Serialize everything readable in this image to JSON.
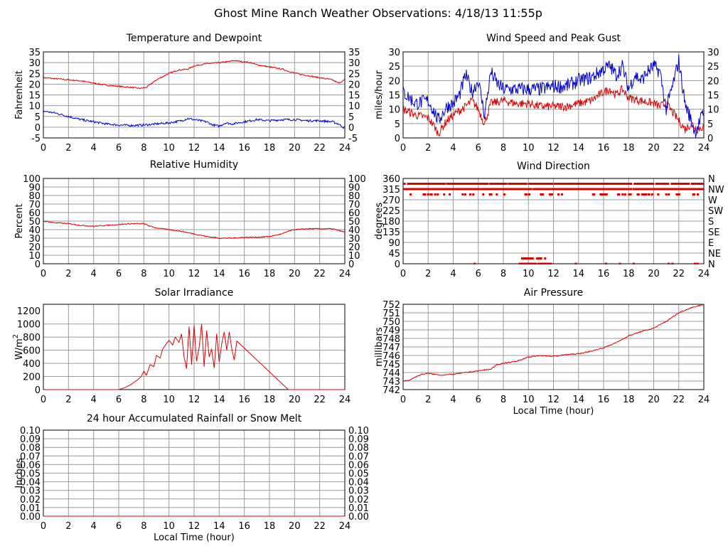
{
  "title": "Ghost Mine Ranch Weather Observations: 4/18/13 11:55p",
  "colors": {
    "red": "#dd0000",
    "blue": "#0000cc",
    "grid": "#9a9a9a"
  },
  "chart_data": [
    {
      "id": "temp",
      "type": "line",
      "title": "Temperature and Dewpoint",
      "xlabel": "",
      "ylabel": "Fahrenheit",
      "xlim": [
        0,
        24
      ],
      "ylim": [
        -5,
        35
      ],
      "xticks": [
        0,
        2,
        4,
        6,
        8,
        10,
        12,
        14,
        16,
        18,
        20,
        22,
        24
      ],
      "yticks": [
        -5,
        0,
        5,
        10,
        15,
        20,
        25,
        30,
        35
      ],
      "yticks_right": [
        -5,
        0,
        5,
        10,
        15,
        20,
        25,
        30,
        35
      ],
      "series": [
        {
          "color": "red",
          "noise": 0.3,
          "x": [
            0,
            1,
            2,
            3,
            4,
            5,
            6,
            7,
            7.7,
            8.2,
            9,
            10,
            10.7,
            11.5,
            12,
            13,
            14,
            14.8,
            15.2,
            15.8,
            16.5,
            17,
            18,
            19,
            19.8,
            20.5,
            21,
            22,
            23,
            23.5,
            24
          ],
          "y": [
            23,
            22.5,
            22,
            21.5,
            20.5,
            19.5,
            19,
            18.5,
            18,
            18.5,
            22,
            25,
            26.5,
            27,
            28.5,
            29.5,
            30,
            30.5,
            31,
            30.5,
            30,
            29,
            28,
            27,
            25.5,
            24.5,
            24,
            23,
            22,
            20.5,
            22
          ]
        },
        {
          "color": "blue",
          "noise": 0.5,
          "x": [
            0,
            1,
            2,
            3,
            4,
            5,
            6,
            7,
            8,
            9,
            10,
            11,
            11.5,
            12,
            13,
            13.5,
            14,
            14.5,
            15,
            16,
            17,
            18,
            19,
            20,
            21,
            22,
            23,
            23.5,
            24
          ],
          "y": [
            7.5,
            6.5,
            5,
            3.5,
            2.5,
            1.5,
            1,
            0.8,
            1,
            1.5,
            2,
            3,
            4,
            3.5,
            2.5,
            1,
            0.5,
            2,
            1.5,
            2.5,
            3.5,
            3,
            3.5,
            3.5,
            3,
            3,
            2.5,
            1.5,
            -0.5
          ]
        }
      ]
    },
    {
      "id": "wind",
      "type": "line",
      "title": "Wind Speed and Peak Gust",
      "xlabel": "",
      "ylabel": "miles/hour",
      "xlim": [
        0,
        24
      ],
      "ylim": [
        0,
        30
      ],
      "xticks": [
        0,
        2,
        4,
        6,
        8,
        10,
        12,
        14,
        16,
        18,
        20,
        22,
        24
      ],
      "yticks": [
        0,
        5,
        10,
        15,
        20,
        25,
        30
      ],
      "yticks_right": [
        0,
        5,
        10,
        15,
        20,
        25,
        30
      ],
      "series": [
        {
          "color": "red",
          "noise": 1.5,
          "x": [
            0,
            1,
            2,
            2.5,
            2.8,
            3.5,
            4,
            5,
            5.5,
            6,
            6.5,
            7,
            8,
            9,
            10,
            11,
            12,
            13,
            14,
            15,
            16,
            16.5,
            17,
            17.5,
            18,
            19,
            20,
            20.5,
            21,
            21.5,
            22,
            22.5,
            23,
            23.5,
            24
          ],
          "y": [
            10,
            8,
            7,
            4,
            1.5,
            6,
            8,
            11,
            13,
            10,
            5,
            12,
            13,
            12,
            12,
            11,
            11,
            11,
            12,
            13,
            16,
            17,
            15,
            17,
            14,
            13,
            12,
            11,
            12,
            9,
            6,
            3,
            5,
            3,
            4
          ]
        },
        {
          "color": "blue",
          "noise": 2.5,
          "x": [
            0,
            1,
            2,
            2.5,
            2.8,
            3.5,
            4,
            4.5,
            5,
            5.5,
            6,
            6.5,
            7,
            7.5,
            8,
            9,
            10,
            11,
            12,
            13,
            14,
            15,
            16,
            16.5,
            17,
            17.5,
            18,
            18.5,
            19,
            19.5,
            20,
            20.5,
            21,
            21.5,
            22,
            22.5,
            23,
            23.3,
            24
          ],
          "y": [
            16,
            12,
            13,
            9,
            6,
            11,
            12,
            15,
            22,
            16,
            20,
            8,
            23,
            19,
            17,
            17,
            17,
            17,
            18,
            18,
            20,
            21,
            24,
            25,
            22,
            25,
            17,
            22,
            20,
            23,
            25,
            23,
            10,
            18,
            27,
            12,
            6,
            2,
            9
          ]
        }
      ]
    },
    {
      "id": "rh",
      "type": "line",
      "title": "Relative Humidity",
      "xlabel": "",
      "ylabel": "Percent",
      "xlim": [
        0,
        24
      ],
      "ylim": [
        0,
        100
      ],
      "xticks": [
        0,
        2,
        4,
        6,
        8,
        10,
        12,
        14,
        16,
        18,
        20,
        22,
        24
      ],
      "yticks": [
        0,
        10,
        20,
        30,
        40,
        50,
        60,
        70,
        80,
        90,
        100
      ],
      "yticks_right": [
        0,
        10,
        20,
        30,
        40,
        50,
        60,
        70,
        80,
        90,
        100
      ],
      "series": [
        {
          "color": "red",
          "noise": 0.6,
          "x": [
            0,
            1,
            2,
            3,
            4,
            5,
            6,
            7,
            8,
            8.5,
            9,
            10,
            11,
            12,
            13,
            14,
            15,
            16,
            17,
            18,
            19,
            19.5,
            20,
            21,
            22,
            23,
            24
          ],
          "y": [
            50,
            48,
            47,
            45,
            44,
            45,
            46,
            47,
            47,
            44,
            42,
            40,
            38,
            35,
            32,
            30,
            30,
            31,
            31,
            32,
            35,
            38,
            40,
            41,
            41,
            41,
            37
          ]
        }
      ]
    },
    {
      "id": "wdir",
      "type": "scatter",
      "title": "Wind Direction",
      "xlabel": "",
      "ylabel": "degrees",
      "xlim": [
        0,
        24
      ],
      "ylim": [
        0,
        360
      ],
      "xticks": [
        0,
        2,
        4,
        6,
        8,
        10,
        12,
        14,
        16,
        18,
        20,
        22,
        24
      ],
      "yticks": [
        0,
        45,
        90,
        135,
        180,
        225,
        270,
        315,
        360
      ],
      "yticks_right_labels": [
        "N",
        "NE",
        "E",
        "SE",
        "S",
        "SW",
        "W",
        "NW",
        "N"
      ],
      "series": [
        {
          "color": "red",
          "bands": [
            {
              "y": 337.5,
              "density": 0.55,
              "x0": 0,
              "x1": 24
            },
            {
              "y": 315,
              "density": 0.7,
              "x0": 0,
              "x1": 24
            },
            {
              "y": 292.5,
              "density": 0.1,
              "x0": 0,
              "x1": 24
            },
            {
              "y": 270,
              "density": 0.02,
              "x0": 13.5,
              "x1": 14.5
            },
            {
              "y": 22.5,
              "density": 0.35,
              "x0": 9.5,
              "x1": 11.5
            },
            {
              "y": 0,
              "density": 0.9,
              "x0": 9.3,
              "x1": 10.6
            },
            {
              "y": 0,
              "density": 0.6,
              "x0": 10.8,
              "x1": 11.8
            }
          ],
          "points": [
            [
              5.7,
              0
            ],
            [
              13.8,
              0
            ],
            [
              16.2,
              0
            ],
            [
              17.3,
              0
            ],
            [
              18.4,
              0
            ],
            [
              21.2,
              0
            ],
            [
              21.5,
              0
            ],
            [
              23.3,
              0
            ],
            [
              23.5,
              0
            ]
          ]
        }
      ]
    },
    {
      "id": "solar",
      "type": "line",
      "title": "Solar Irradiance",
      "xlabel": "",
      "ylabel": "W/m",
      "ylabel_superscript": "2",
      "xlim": [
        0,
        24
      ],
      "ylim": [
        0,
        1300
      ],
      "xticks": [
        0,
        2,
        4,
        6,
        8,
        10,
        12,
        14,
        16,
        18,
        20,
        22,
        24
      ],
      "yticks": [
        0,
        200,
        400,
        600,
        800,
        1000,
        1200
      ],
      "series": [
        {
          "color": "red",
          "noise": 0,
          "x": [
            0,
            6,
            6.5,
            7,
            7.5,
            7.8,
            8,
            8.2,
            8.5,
            8.8,
            9,
            9.3,
            9.5,
            9.8,
            10,
            10.3,
            10.5,
            10.8,
            11,
            11.2,
            11.4,
            11.6,
            11.8,
            12,
            12.2,
            12.4,
            12.6,
            12.8,
            13,
            13.2,
            13.4,
            13.6,
            13.8,
            14,
            14.2,
            14.4,
            14.6,
            14.8,
            15,
            15.2,
            15.4,
            19.5,
            24
          ],
          "y": [
            0,
            0,
            30,
            80,
            150,
            200,
            280,
            220,
            380,
            350,
            520,
            480,
            620,
            700,
            750,
            680,
            800,
            720,
            850,
            500,
            320,
            960,
            380,
            980,
            430,
            640,
            1000,
            350,
            900,
            500,
            620,
            330,
            850,
            420,
            700,
            880,
            600,
            880,
            620,
            450,
            740,
            0,
            0
          ]
        }
      ]
    },
    {
      "id": "press",
      "type": "line",
      "title": "Air Pressure",
      "xlabel": "Local Time (hour)",
      "ylabel": "millibars",
      "xlim": [
        0,
        24
      ],
      "ylim": [
        742,
        752
      ],
      "xticks": [
        0,
        2,
        4,
        6,
        8,
        10,
        12,
        14,
        16,
        18,
        20,
        22,
        24
      ],
      "yticks": [
        742,
        743,
        744,
        745,
        746,
        747,
        748,
        749,
        750,
        751,
        752
      ],
      "series": [
        {
          "color": "red",
          "noise": 0.06,
          "x": [
            0,
            0.5,
            1,
            1.5,
            2,
            3,
            4,
            5,
            6,
            7,
            7.5,
            8,
            9,
            10,
            11,
            12,
            13,
            14,
            15,
            16,
            17,
            18,
            19,
            20,
            21,
            22,
            23,
            24
          ],
          "y": [
            743,
            743.1,
            743.5,
            743.8,
            743.9,
            743.7,
            743.8,
            744,
            744.2,
            744.4,
            744.9,
            745.1,
            745.3,
            745.8,
            746.0,
            745.9,
            746.1,
            746.2,
            746.5,
            746.9,
            747.5,
            748.3,
            748.8,
            749.2,
            750.0,
            751.0,
            751.6,
            752.0
          ]
        }
      ]
    },
    {
      "id": "rain",
      "type": "line",
      "title": "24 hour Accumulated Rainfall or Snow Melt",
      "xlabel": "Local Time (hour)",
      "ylabel": "Inches",
      "xlim": [
        0,
        24
      ],
      "ylim": [
        0,
        0.1
      ],
      "xticks": [
        0,
        2,
        4,
        6,
        8,
        10,
        12,
        14,
        16,
        18,
        20,
        22,
        24
      ],
      "yticks": [
        "0.00",
        "0.01",
        "0.02",
        "0.03",
        "0.04",
        "0.05",
        "0.06",
        "0.07",
        "0.08",
        "0.09",
        "0.10"
      ],
      "yticks_right": [
        "0.00",
        "0.01",
        "0.02",
        "0.03",
        "0.04",
        "0.05",
        "0.06",
        "0.07",
        "0.08",
        "0.09",
        "0.10"
      ],
      "series": [
        {
          "color": "red",
          "noise": 0,
          "x": [
            0,
            24
          ],
          "y": [
            0,
            0
          ]
        }
      ]
    }
  ]
}
